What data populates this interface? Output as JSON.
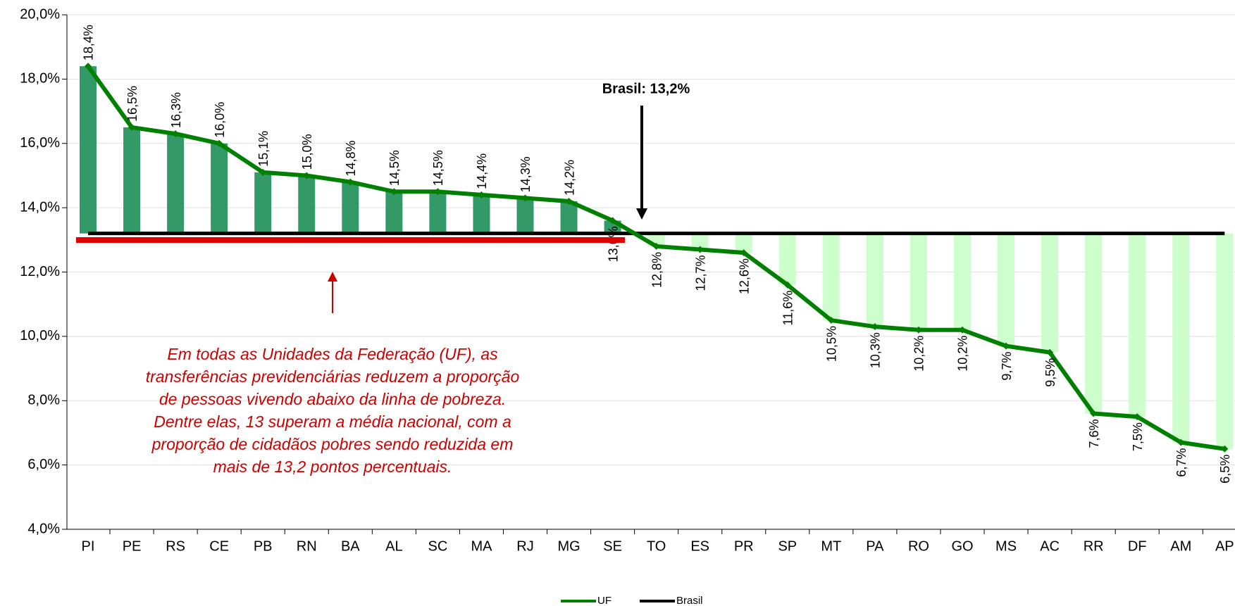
{
  "chart_data": {
    "type": "bar-line",
    "categories": [
      "PI",
      "PE",
      "RS",
      "CE",
      "PB",
      "RN",
      "BA",
      "AL",
      "SC",
      "MA",
      "RJ",
      "MG",
      "SE",
      "TO",
      "ES",
      "PR",
      "SP",
      "MT",
      "PA",
      "RO",
      "GO",
      "MS",
      "AC",
      "RR",
      "DF",
      "AM",
      "AP"
    ],
    "series": [
      {
        "name": "UF",
        "color": "#008000",
        "above_color": "#339966",
        "below_color": "#ccffcc",
        "values": [
          18.4,
          16.5,
          16.3,
          16.0,
          15.1,
          15.0,
          14.8,
          14.5,
          14.5,
          14.4,
          14.3,
          14.2,
          13.6,
          12.8,
          12.7,
          12.6,
          11.6,
          10.5,
          10.3,
          10.2,
          10.2,
          9.7,
          9.5,
          7.6,
          7.5,
          6.7,
          6.5
        ],
        "value_labels": [
          "18,4%",
          "16,5%",
          "16,3%",
          "16,0%",
          "15,1%",
          "15,0%",
          "14,8%",
          "14,5%",
          "14,5%",
          "14,4%",
          "14,3%",
          "14,2%",
          "13,6%",
          "12,8%",
          "12,7%",
          "12,6%",
          "11,6%",
          "10,5%",
          "10,3%",
          "10,2%",
          "10,2%",
          "9,7%",
          "9,5%",
          "7,6%",
          "7,5%",
          "6,7%",
          "6,5%"
        ]
      },
      {
        "name": "Brasil",
        "color": "#000000",
        "values": [
          13.2,
          13.2,
          13.2,
          13.2,
          13.2,
          13.2,
          13.2,
          13.2,
          13.2,
          13.2,
          13.2,
          13.2,
          13.2,
          13.2,
          13.2,
          13.2,
          13.2,
          13.2,
          13.2,
          13.2,
          13.2,
          13.2,
          13.2,
          13.2,
          13.2,
          13.2,
          13.2
        ]
      }
    ],
    "ylim": [
      4,
      20
    ],
    "yticks": [
      {
        "value": 4,
        "label": "4,0%"
      },
      {
        "value": 6,
        "label": "6,0%"
      },
      {
        "value": 8,
        "label": "8,0%"
      },
      {
        "value": 10,
        "label": "10,0%"
      },
      {
        "value": 12,
        "label": "12,0%"
      },
      {
        "value": 14,
        "label": "14,0%"
      },
      {
        "value": 16,
        "label": "16,0%"
      },
      {
        "value": 18,
        "label": "18,0%"
      },
      {
        "value": 20,
        "label": "20,0%"
      }
    ],
    "grid": true,
    "annotation_brasil": "Brasil: 13,2%",
    "annotation_note": [
      "Em todas as Unidades da Federação (UF), as",
      "transferências previdenciárias reduzem a proporção",
      "de pessoas vivendo abaixo da linha de pobreza.",
      "Dentre elas, 13 superam a média nacional, com a",
      "proporção de cidadãos pobres sendo reduzida em",
      "mais de 13,2 pontos percentuais."
    ],
    "legend": "bottom"
  }
}
